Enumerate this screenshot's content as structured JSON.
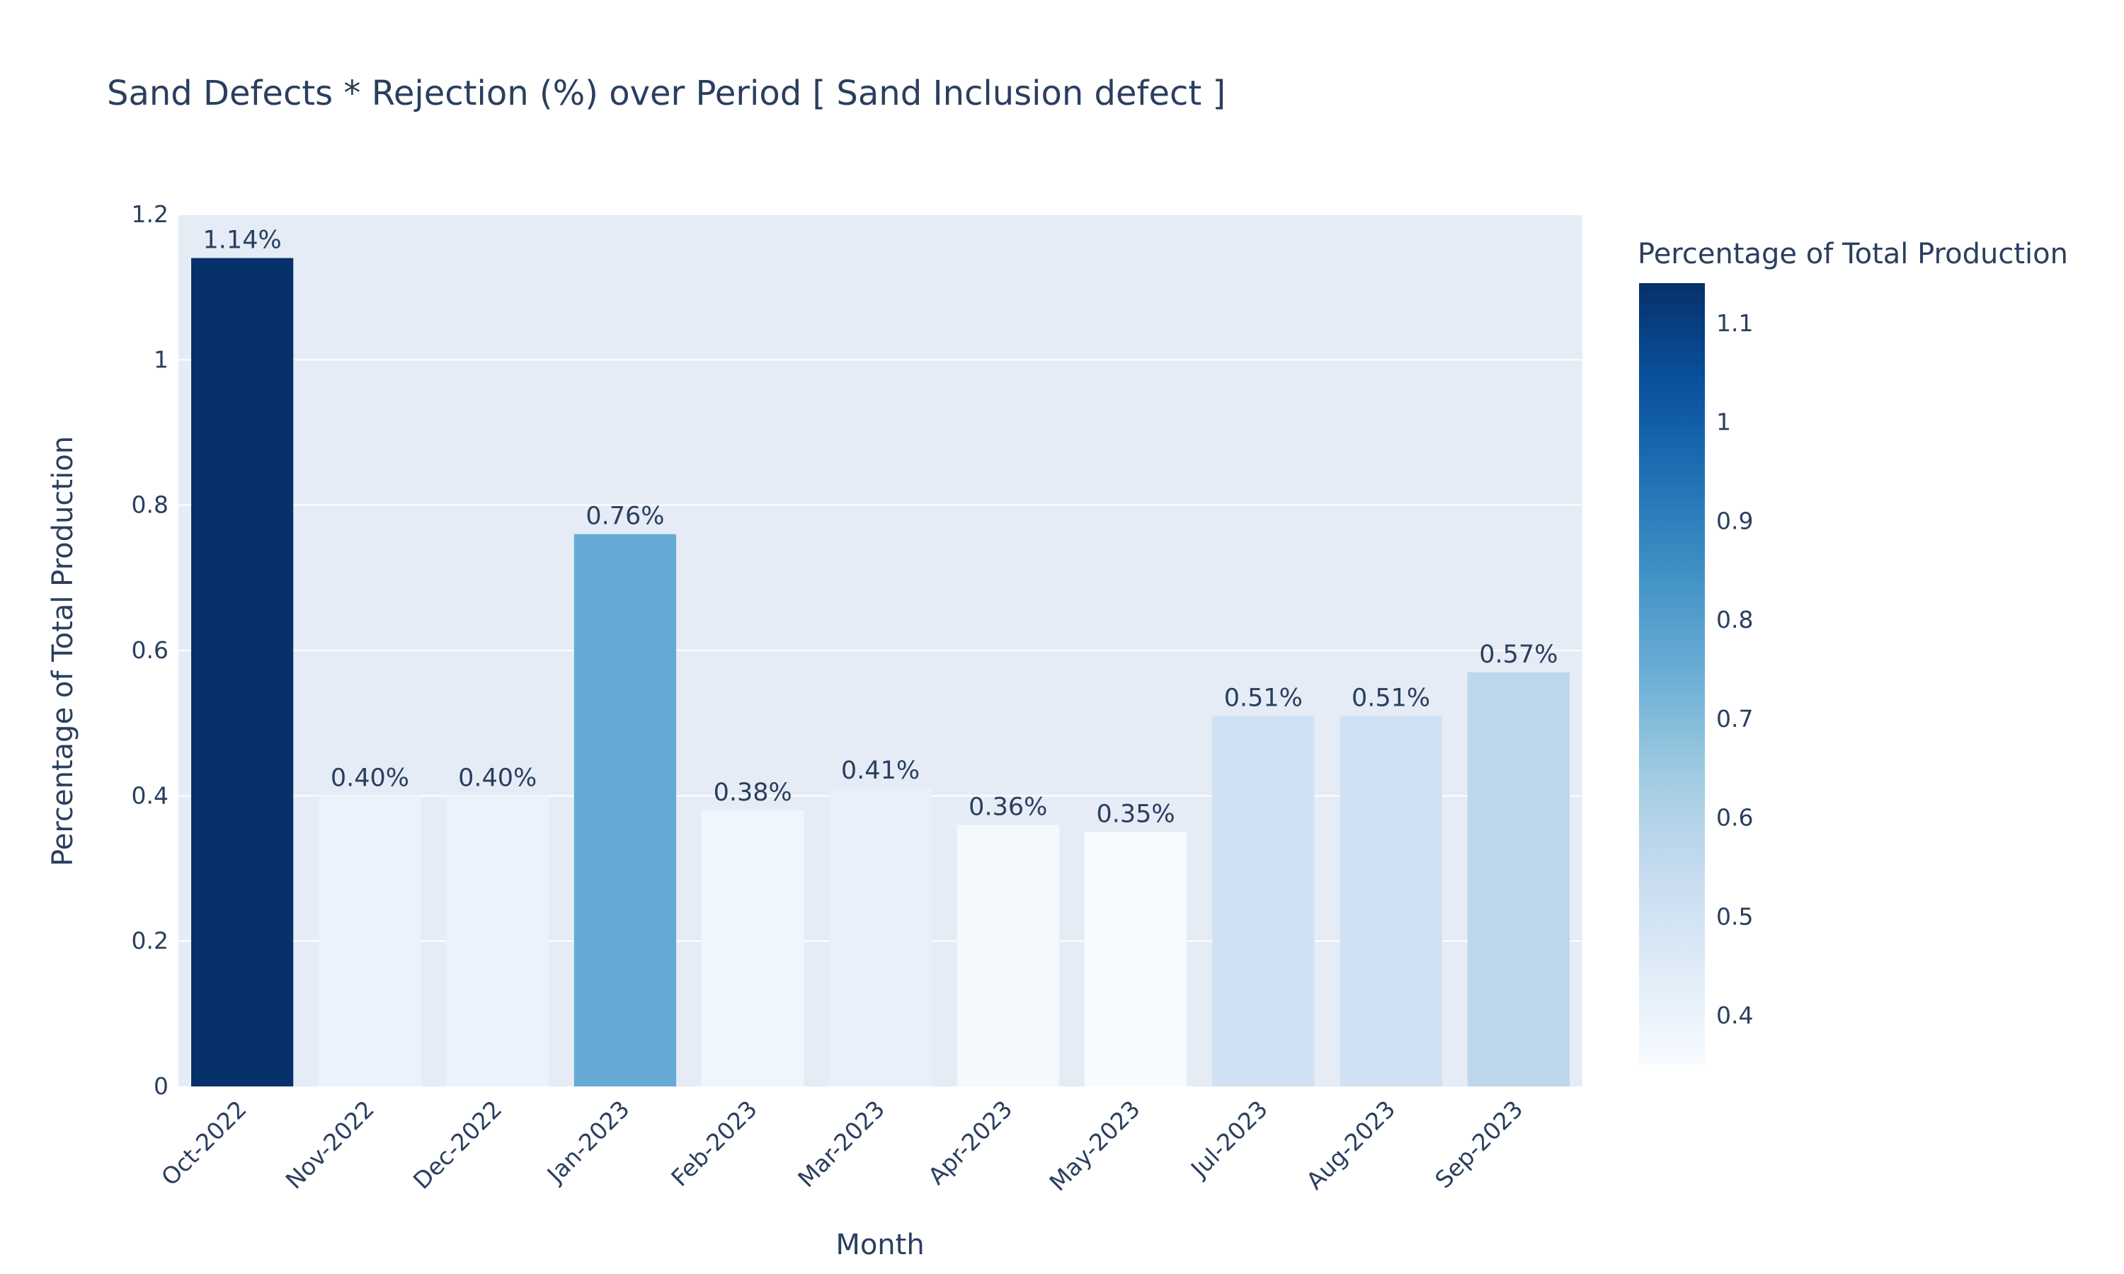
{
  "chart_data": {
    "type": "bar",
    "title": "Sand Defects * Rejection (%) over Period [ Sand Inclusion defect ]",
    "xlabel": "Month",
    "ylabel": "Percentage of Total Production",
    "categories": [
      "Oct-2022",
      "Nov-2022",
      "Dec-2022",
      "Jan-2023",
      "Feb-2023",
      "Mar-2023",
      "Apr-2023",
      "May-2023",
      "Jul-2023",
      "Aug-2023",
      "Sep-2023"
    ],
    "values": [
      1.14,
      0.4,
      0.4,
      0.76,
      0.38,
      0.41,
      0.36,
      0.35,
      0.51,
      0.51,
      0.57
    ],
    "data_labels": [
      "1.14%",
      "0.40%",
      "0.40%",
      "0.76%",
      "0.38%",
      "0.41%",
      "0.36%",
      "0.35%",
      "0.51%",
      "0.51%",
      "0.57%"
    ],
    "ylim": [
      0,
      1.2
    ],
    "yticks": [
      0,
      0.2,
      0.4,
      0.6,
      0.8,
      1,
      1.2
    ],
    "ytick_labels": [
      "0",
      "0.2",
      "0.4",
      "0.6",
      "0.8",
      "1",
      "1.2"
    ],
    "grid": true,
    "colorbar": {
      "title": "Percentage of Total Production",
      "range": [
        0.35,
        1.14
      ],
      "ticks": [
        0.4,
        0.5,
        0.6,
        0.7,
        0.8,
        0.9,
        1,
        1.1
      ],
      "tick_labels": [
        "0.4",
        "0.5",
        "0.6",
        "0.7",
        "0.8",
        "0.9",
        "1",
        "1.1"
      ],
      "colorscale": "Blues",
      "placement": "right"
    },
    "colors": {
      "plot_background": "#e5ecf6",
      "gridline": "#ffffff",
      "text": "#2a3f5f"
    }
  }
}
